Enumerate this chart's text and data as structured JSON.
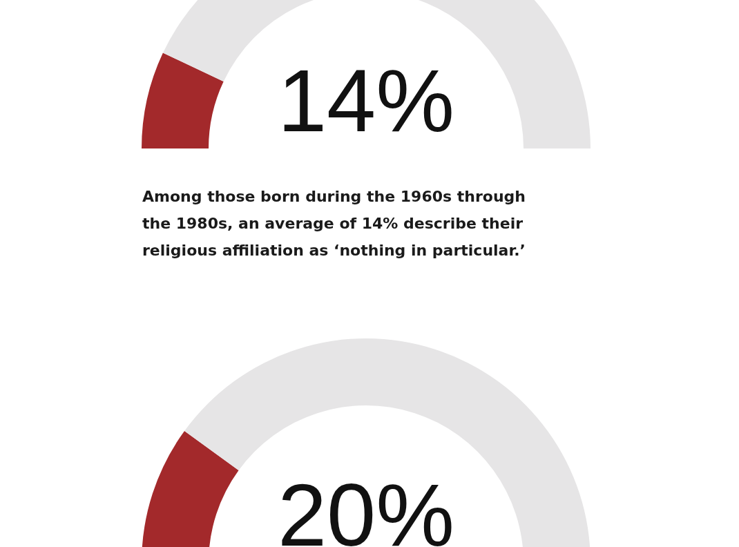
{
  "chart_data": [
    {
      "type": "donut",
      "title": "14%",
      "categories": [
        null,
        null
      ],
      "values": [
        14,
        86
      ],
      "colors": [
        "#a3292b",
        "#e6e5e6"
      ],
      "annotations": [
        "Among those born during the 1960s through the 1980s, an average of 14% describe their religious affiliation as ‘nothing in particular.’"
      ]
    },
    {
      "type": "donut",
      "title": "20%",
      "categories": [
        null,
        null
      ],
      "values": [
        20,
        80
      ],
      "colors": [
        "#a3292b",
        "#e6e5e6"
      ]
    }
  ]
}
